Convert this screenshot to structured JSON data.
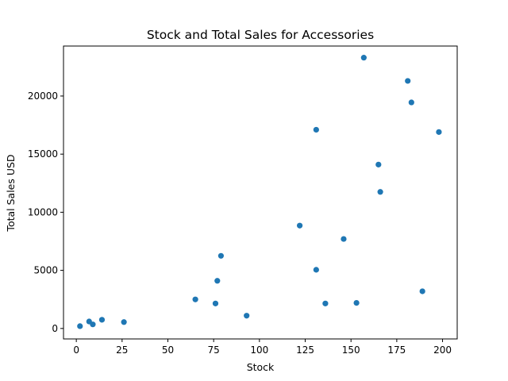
{
  "chart_data": {
    "type": "scatter",
    "title": "Stock and Total Sales for Accessories",
    "xlabel": "Stock",
    "ylabel": "Total Sales USD",
    "xlim": [
      -7,
      208
    ],
    "ylim": [
      -900,
      24300
    ],
    "xticks": [
      0,
      25,
      50,
      75,
      100,
      125,
      150,
      175,
      200
    ],
    "yticks": [
      0,
      5000,
      10000,
      15000,
      20000
    ],
    "grid": false,
    "point_color": "#1f77b4",
    "points": [
      {
        "x": 2,
        "y": 200
      },
      {
        "x": 7,
        "y": 600
      },
      {
        "x": 9,
        "y": 350
      },
      {
        "x": 14,
        "y": 750
      },
      {
        "x": 26,
        "y": 550
      },
      {
        "x": 65,
        "y": 2500
      },
      {
        "x": 76,
        "y": 2150
      },
      {
        "x": 77,
        "y": 4100
      },
      {
        "x": 79,
        "y": 6250
      },
      {
        "x": 93,
        "y": 1100
      },
      {
        "x": 122,
        "y": 8850
      },
      {
        "x": 131,
        "y": 17100
      },
      {
        "x": 131,
        "y": 5050
      },
      {
        "x": 136,
        "y": 2150
      },
      {
        "x": 146,
        "y": 7700
      },
      {
        "x": 153,
        "y": 2200
      },
      {
        "x": 157,
        "y": 23300
      },
      {
        "x": 165,
        "y": 14100
      },
      {
        "x": 166,
        "y": 11750
      },
      {
        "x": 181,
        "y": 21300
      },
      {
        "x": 183,
        "y": 19450
      },
      {
        "x": 189,
        "y": 3200
      },
      {
        "x": 198,
        "y": 16900
      }
    ]
  }
}
